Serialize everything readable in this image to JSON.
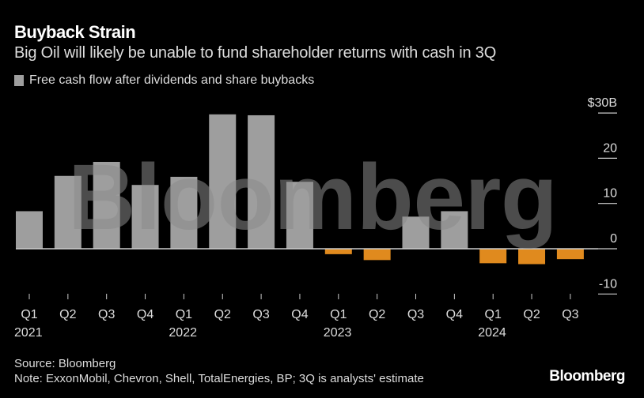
{
  "chart_data": {
    "type": "bar",
    "title": "Buyback Strain",
    "subtitle": "Big Oil will likely be unable to fund shareholder returns with cash in 3Q",
    "categories": [
      "Q1 2021",
      "Q2 2021",
      "Q3 2021",
      "Q4 2021",
      "Q1 2022",
      "Q2 2022",
      "Q3 2022",
      "Q4 2022",
      "Q1 2023",
      "Q2 2023",
      "Q3 2023",
      "Q4 2023",
      "Q1 2024",
      "Q2 2024",
      "Q3 2024"
    ],
    "quarter_labels": [
      "Q1",
      "Q2",
      "Q3",
      "Q4",
      "Q1",
      "Q2",
      "Q3",
      "Q4",
      "Q1",
      "Q2",
      "Q3",
      "Q4",
      "Q1",
      "Q2",
      "Q3"
    ],
    "year_labels": [
      {
        "index": 0,
        "label": "2021"
      },
      {
        "index": 4,
        "label": "2022"
      },
      {
        "index": 8,
        "label": "2023"
      },
      {
        "index": 12,
        "label": "2024"
      }
    ],
    "series": [
      {
        "name": "Free cash flow after dividends and share buybacks",
        "values": [
          8.3,
          16.1,
          19.2,
          14.1,
          15.9,
          29.7,
          29.5,
          14.8,
          -1.2,
          -2.5,
          7.1,
          8.3,
          -3.2,
          -3.4,
          -2.3
        ]
      }
    ],
    "ylim": [
      -10,
      30
    ],
    "yticks": [
      {
        "value": 30,
        "label": "$30B"
      },
      {
        "value": 20,
        "label": "20"
      },
      {
        "value": 10,
        "label": "10"
      },
      {
        "value": 0,
        "label": "0"
      },
      {
        "value": -10,
        "label": "-10"
      }
    ],
    "y_axis_position": "right",
    "legend_position": "top-left",
    "grid": false,
    "colors": {
      "positive": "#9e9e9e",
      "negative": "#e08a1e",
      "background": "#000000"
    }
  },
  "watermark": "Bloomberg",
  "footer": {
    "source": "Source: Bloomberg",
    "note": "Note: ExxonMobil, Chevron, Shell, TotalEnergies, BP; 3Q is analysts' estimate",
    "logo": "Bloomberg"
  }
}
